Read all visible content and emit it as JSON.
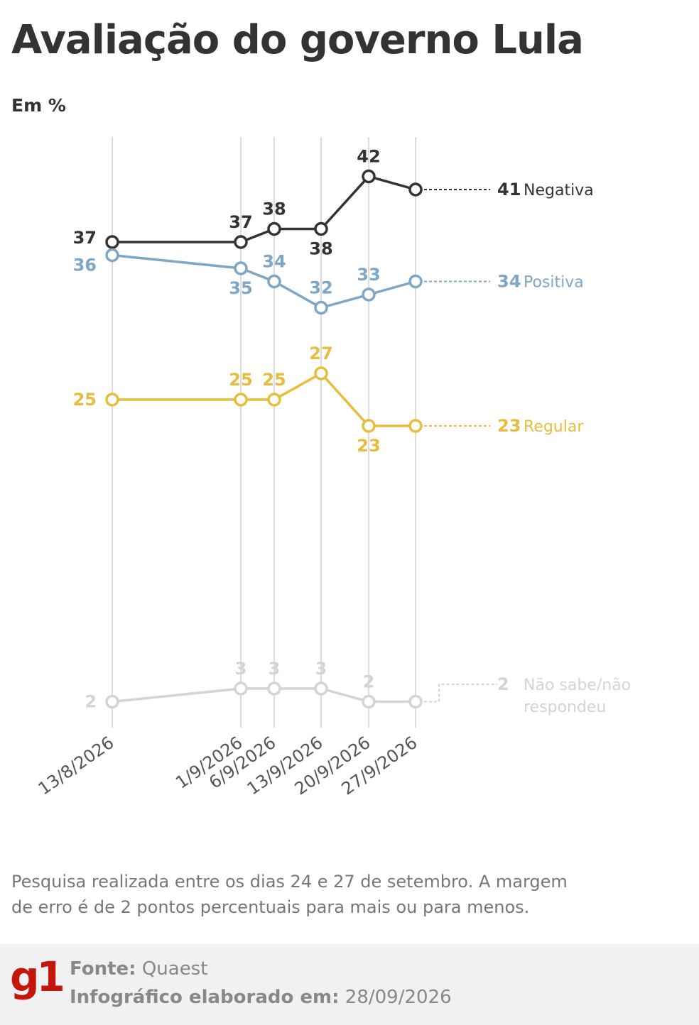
{
  "title": "Avaliação do governo Lula",
  "subtitle": "Em %",
  "note": "Pesquisa realizada entre os dias 24 e 27 de setembro. A margem de erro é de 2 pontos percentuais para mais ou para menos.",
  "footer": {
    "source_label": "Fonte:",
    "source_value": "Quaest",
    "made_label": "Infográfico elaborado em:",
    "made_value": "28/09/2026",
    "logo": "g1"
  },
  "chart_data": {
    "type": "line",
    "categories": [
      "13/8/2026",
      "1/9/2026",
      "6/9/2026",
      "13/9/2026",
      "20/9/2026",
      "27/9/2026"
    ],
    "grid": "vertical lines at each survey date",
    "series": [
      {
        "name": "Negativa",
        "values": [
          37,
          37,
          38,
          38,
          42,
          41
        ],
        "color": "#333333",
        "end_label": [
          "41",
          "Negativa"
        ]
      },
      {
        "name": "Positiva",
        "values": [
          36,
          35,
          34,
          32,
          33,
          34
        ],
        "color": "#7fa6c4",
        "end_label": [
          "34",
          "Positiva"
        ]
      },
      {
        "name": "Regular",
        "values": [
          25,
          25,
          25,
          27,
          23,
          23
        ],
        "color": "#e6bd3c",
        "end_label": [
          "23",
          "Regular"
        ]
      },
      {
        "name": "Não sabe/não respondeu",
        "values": [
          2,
          3,
          3,
          3,
          2,
          2
        ],
        "color": "#d4d4d4",
        "end_label": [
          "2",
          "Não sabe/não",
          "respondeu"
        ]
      }
    ]
  }
}
